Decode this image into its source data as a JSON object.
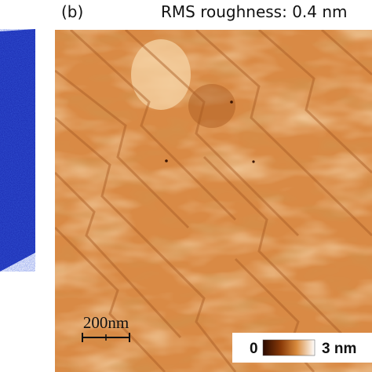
{
  "panel_label": "(b)",
  "annotation": "RMS roughness: 0.4 nm",
  "scale_bar": "200nm",
  "colorbar": {
    "min_label": "0",
    "max_label": "3 nm"
  }
}
